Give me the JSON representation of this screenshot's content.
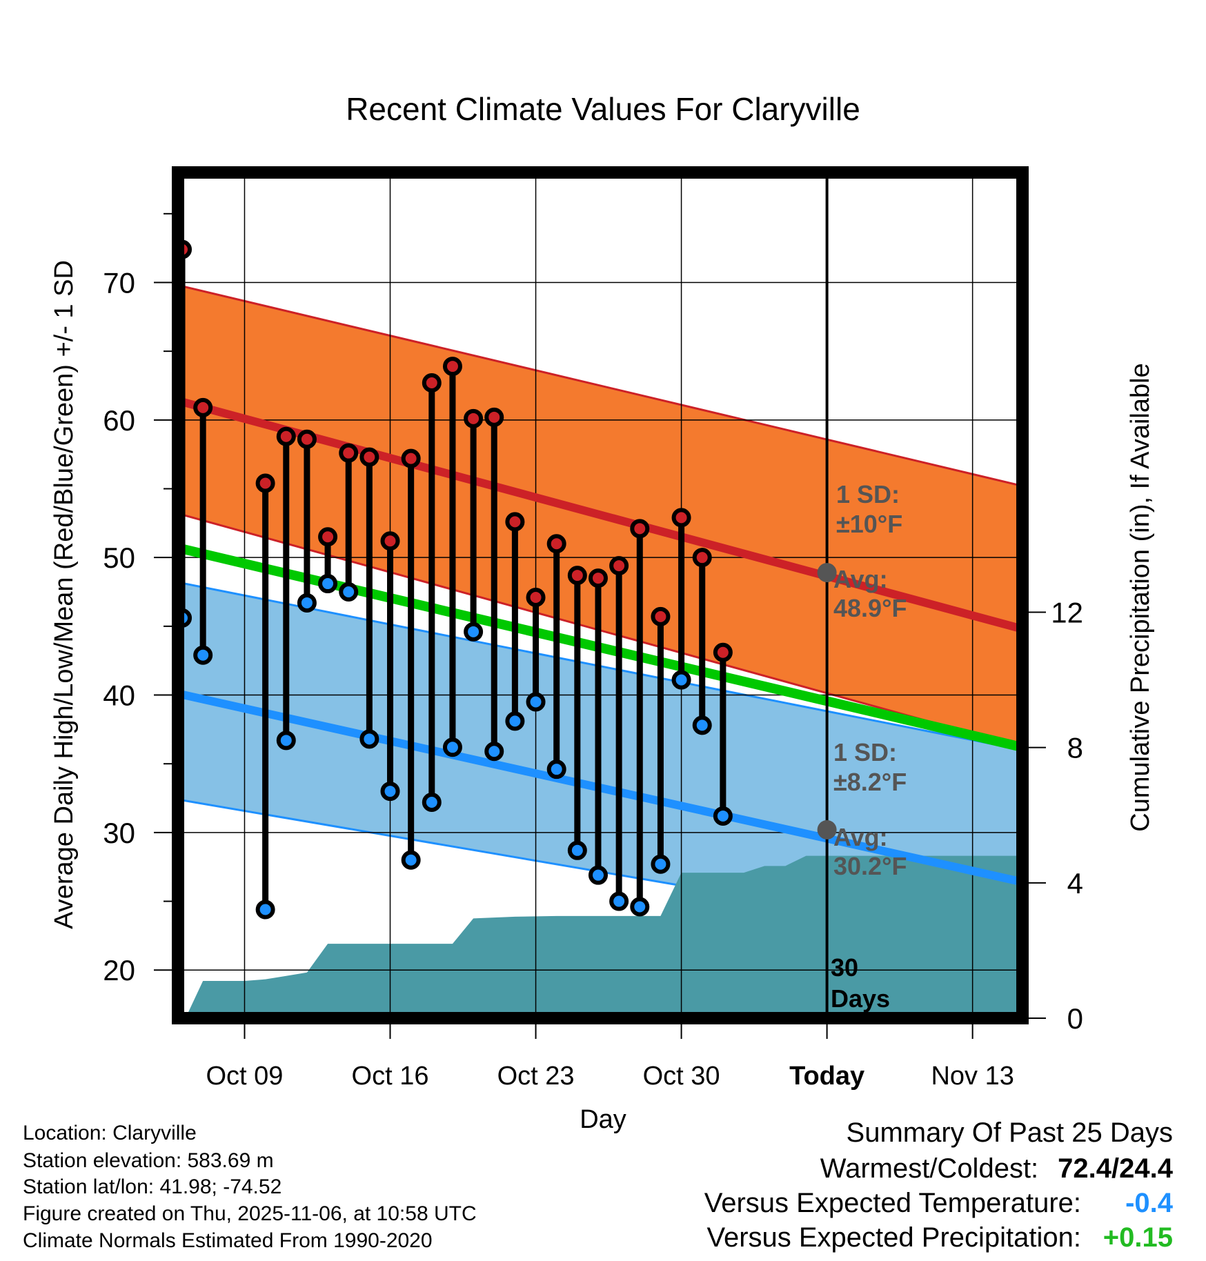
{
  "chart_data": {
    "type": "line",
    "title": "Recent Climate Values For Claryville",
    "xlabel": "Day",
    "ylabel": "Average Daily High/Low/Mean (Red/Blue/Green) +/- 1 SD",
    "ylabel_right": "Cumulative Precipitation (in), If Available",
    "ylim": [
      16.5,
      78
    ],
    "ylim_right": [
      0,
      25
    ],
    "y_ticks": [
      20,
      30,
      40,
      50,
      60,
      70
    ],
    "y_ticks_right": [
      0,
      4,
      8,
      12
    ],
    "x_ticks": [
      {
        "day": 9,
        "label": "Oct 09"
      },
      {
        "day": 16,
        "label": "Oct 16"
      },
      {
        "day": 23,
        "label": "Oct 23"
      },
      {
        "day": 30,
        "label": "Oct 30"
      },
      {
        "day": 37,
        "label": "Today"
      },
      {
        "day": 44,
        "label": "Nov 13"
      }
    ],
    "x_range": [
      5.8,
      46.4
    ],
    "today_day": 37,
    "normals": {
      "high": {
        "start": 61.4,
        "end": 44.8,
        "sd_upper_start": 69.8,
        "sd_upper_end": 55.2,
        "sd_lower_start": 53.2,
        "sd_lower_end": 36.2
      },
      "low": {
        "start": 40.1,
        "end": 26.4,
        "sd_upper_start": 48.2,
        "sd_upper_end": 36.0,
        "sd_lower_start": 32.4,
        "sd_lower_end": 21.9
      },
      "mean": {
        "start": 50.7,
        "end": 36.2
      }
    },
    "annotations": {
      "high_sd": {
        "line1": "1 SD:",
        "line2": "±10°F"
      },
      "high_avg": {
        "line1": "Avg:",
        "line2": "48.9°F",
        "value": 48.9
      },
      "low_sd": {
        "line1": "1 SD:",
        "line2": "±8.2°F"
      },
      "low_avg": {
        "line1": "Avg:",
        "line2": "30.2°F",
        "value": 30.2
      },
      "window": {
        "line1": "30",
        "line2": "Days"
      }
    },
    "daily": [
      {
        "day": 6,
        "high": 72.4,
        "low": 45.6
      },
      {
        "day": 7,
        "high": 60.9,
        "low": 42.9
      },
      {
        "day": 10,
        "high": 55.4,
        "low": 24.4
      },
      {
        "day": 11,
        "high": 58.8,
        "low": 36.7
      },
      {
        "day": 12,
        "high": 58.6,
        "low": 46.7
      },
      {
        "day": 13,
        "high": 51.5,
        "low": 48.1
      },
      {
        "day": 14,
        "high": 57.6,
        "low": 47.5
      },
      {
        "day": 15,
        "high": 57.3,
        "low": 36.8
      },
      {
        "day": 16,
        "high": 51.2,
        "low": 33.0
      },
      {
        "day": 17,
        "high": 57.2,
        "low": 28.0
      },
      {
        "day": 18,
        "high": 62.7,
        "low": 32.2
      },
      {
        "day": 19,
        "high": 63.9,
        "low": 36.2
      },
      {
        "day": 20,
        "high": 60.1,
        "low": 44.6
      },
      {
        "day": 21,
        "high": 60.2,
        "low": 35.9
      },
      {
        "day": 22,
        "high": 52.6,
        "low": 38.1
      },
      {
        "day": 23,
        "high": 47.1,
        "low": 39.5
      },
      {
        "day": 24,
        "high": 51.0,
        "low": 34.6
      },
      {
        "day": 25,
        "high": 48.7,
        "low": 28.7
      },
      {
        "day": 26,
        "high": 48.5,
        "low": 26.9
      },
      {
        "day": 27,
        "high": 49.4,
        "low": 25.0
      },
      {
        "day": 28,
        "high": 52.1,
        "low": 24.6
      },
      {
        "day": 29,
        "high": 45.7,
        "low": 27.7
      },
      {
        "day": 30,
        "high": 52.9,
        "low": 41.1
      },
      {
        "day": 31,
        "high": 50.0,
        "low": 37.8
      },
      {
        "day": 32,
        "high": 43.1,
        "low": 31.2
      }
    ],
    "precipitation": [
      {
        "day": 5.8,
        "value": 0.0
      },
      {
        "day": 6.2,
        "value": 0.05
      },
      {
        "day": 7.0,
        "value": 1.1
      },
      {
        "day": 9.0,
        "value": 1.1
      },
      {
        "day": 10.0,
        "value": 1.15
      },
      {
        "day": 11.0,
        "value": 1.25
      },
      {
        "day": 12.0,
        "value": 1.35
      },
      {
        "day": 13.0,
        "value": 2.2
      },
      {
        "day": 19.0,
        "value": 2.2
      },
      {
        "day": 20.0,
        "value": 2.95
      },
      {
        "day": 22.0,
        "value": 3.0
      },
      {
        "day": 24.0,
        "value": 3.02
      },
      {
        "day": 29.0,
        "value": 3.02
      },
      {
        "day": 30.0,
        "value": 4.3
      },
      {
        "day": 33.0,
        "value": 4.3
      },
      {
        "day": 34.0,
        "value": 4.5
      },
      {
        "day": 35.0,
        "value": 4.5
      },
      {
        "day": 36.0,
        "value": 4.8
      },
      {
        "day": 46.4,
        "value": 4.8
      }
    ]
  },
  "info": {
    "location": "Location: Claryville",
    "elevation": "Station elevation: 583.69 m",
    "latlon": "Station lat/lon: 41.98; -74.52",
    "created": "Figure created on Thu, 2025-11-06, at 10:58 UTC",
    "normals": "Climate Normals Estimated From 1990-2020"
  },
  "summary": {
    "title": "Summary Of Past 25 Days",
    "extremes_label": "Warmest/Coldest:",
    "extremes_value": "72.4/24.4",
    "temp_label": "Versus Expected Temperature:",
    "temp_value": "-0.4",
    "precip_label": "Versus Expected Precipitation:",
    "precip_value": "+0.15"
  },
  "colors": {
    "high_band": "#f47a2e",
    "high_line": "#cc2127",
    "low_band": "#86c1e6",
    "low_line": "#1e90ff",
    "mean_line": "#00c800",
    "precip": "#4a9aa5",
    "marker_high": "#cc2127",
    "marker_low": "#1e90ff",
    "annotation": "#555555",
    "temp_delta": "#1e90ff",
    "precip_delta": "#22bb22"
  }
}
